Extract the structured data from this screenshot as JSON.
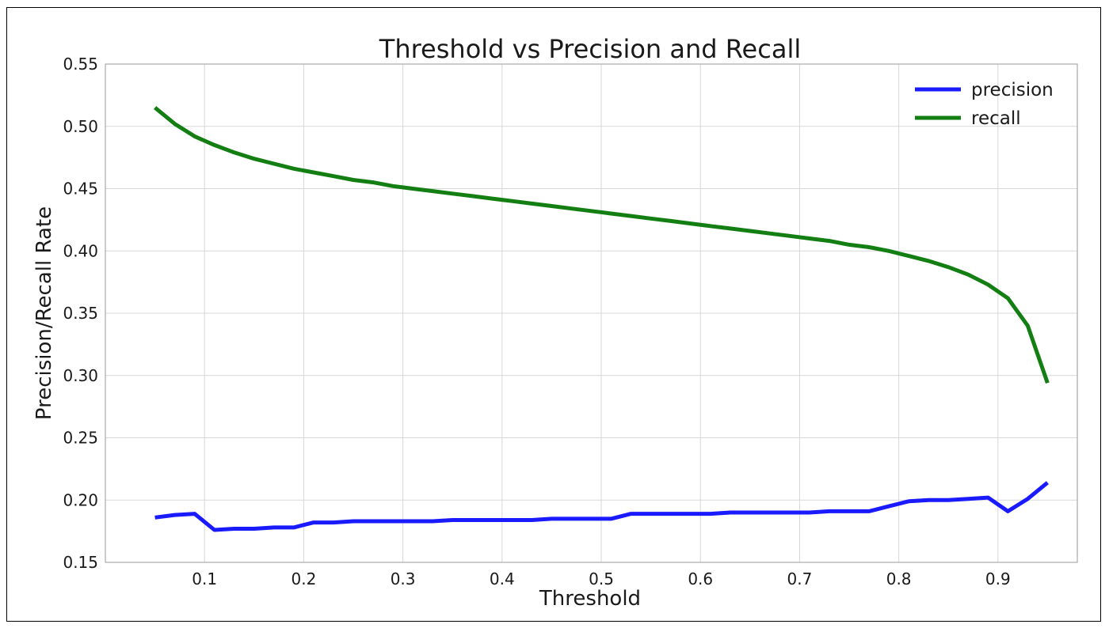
{
  "chart_data": {
    "type": "line",
    "title": "Threshold vs Precision and Recall",
    "xlabel": "Threshold",
    "ylabel": "Precision/Recall Rate",
    "xlim": [
      0.0,
      0.98
    ],
    "ylim": [
      0.15,
      0.55
    ],
    "xticks": [
      "0.1",
      "0.2",
      "0.3",
      "0.4",
      "0.5",
      "0.6",
      "0.7",
      "0.8",
      "0.9"
    ],
    "yticks": [
      "0.15",
      "0.20",
      "0.25",
      "0.30",
      "0.35",
      "0.40",
      "0.45",
      "0.50",
      "0.55"
    ],
    "grid": true,
    "legend_position": "top-right",
    "x": [
      0.05,
      0.07,
      0.09,
      0.11,
      0.13,
      0.15,
      0.17,
      0.19,
      0.21,
      0.23,
      0.25,
      0.27,
      0.29,
      0.31,
      0.33,
      0.35,
      0.37,
      0.39,
      0.41,
      0.43,
      0.45,
      0.47,
      0.49,
      0.51,
      0.53,
      0.55,
      0.57,
      0.59,
      0.61,
      0.63,
      0.65,
      0.67,
      0.69,
      0.71,
      0.73,
      0.75,
      0.77,
      0.79,
      0.81,
      0.83,
      0.85,
      0.87,
      0.89,
      0.91,
      0.93,
      0.95
    ],
    "series": [
      {
        "name": "precision",
        "color": "#1a1aff",
        "values": [
          0.186,
          0.188,
          0.189,
          0.176,
          0.177,
          0.177,
          0.178,
          0.178,
          0.182,
          0.182,
          0.183,
          0.183,
          0.183,
          0.183,
          0.183,
          0.184,
          0.184,
          0.184,
          0.184,
          0.184,
          0.185,
          0.185,
          0.185,
          0.185,
          0.189,
          0.189,
          0.189,
          0.189,
          0.189,
          0.19,
          0.19,
          0.19,
          0.19,
          0.19,
          0.191,
          0.191,
          0.191,
          0.195,
          0.199,
          0.2,
          0.2,
          0.201,
          0.202,
          0.191,
          0.201,
          0.214
        ]
      },
      {
        "name": "recall",
        "color": "#137f13",
        "values": [
          0.515,
          0.502,
          0.492,
          0.485,
          0.479,
          0.474,
          0.47,
          0.466,
          0.463,
          0.46,
          0.457,
          0.455,
          0.452,
          0.45,
          0.448,
          0.446,
          0.444,
          0.442,
          0.44,
          0.438,
          0.436,
          0.434,
          0.432,
          0.43,
          0.428,
          0.426,
          0.424,
          0.422,
          0.42,
          0.418,
          0.416,
          0.414,
          0.412,
          0.41,
          0.408,
          0.405,
          0.403,
          0.4,
          0.396,
          0.392,
          0.387,
          0.381,
          0.373,
          0.362,
          0.34,
          0.294
        ]
      }
    ]
  }
}
